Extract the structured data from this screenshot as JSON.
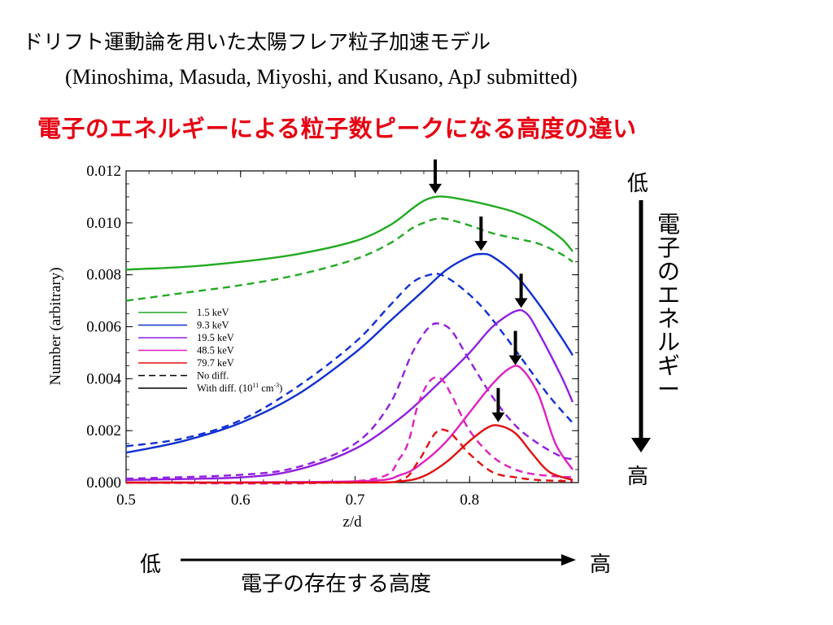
{
  "header": {
    "title": "ドリフト運動論を用いた太陽フレア粒子加速モデル",
    "reference": "(Minoshima, Masuda, Miyoshi, and Kusano, ApJ submitted)",
    "subtitle": "電子のエネルギーによる粒子数ピークになる高度の違い"
  },
  "energy_axis": {
    "low": "低",
    "high": "高",
    "label": "電子のエネルギー"
  },
  "altitude_axis": {
    "low": "低",
    "high": "高",
    "label": "電子の存在する高度"
  },
  "colors": {
    "subtitle": "#e60012",
    "green": "#22aa22",
    "blue": "#1030d0",
    "purple": "#9020e0",
    "magenta": "#e020c0",
    "red": "#e01010"
  },
  "chart_data": {
    "type": "line",
    "xlabel": "z/d",
    "ylabel": "Number (arbitrary)",
    "xlim": [
      0.5,
      0.895
    ],
    "ylim": [
      0.0,
      0.012
    ],
    "x_ticks": [
      "0.5",
      "0.6",
      "0.7",
      "0.8"
    ],
    "x_tick_values": [
      0.5,
      0.6,
      0.7,
      0.8
    ],
    "y_ticks": [
      "0.000",
      "0.002",
      "0.004",
      "0.006",
      "0.008",
      "0.010",
      "0.012"
    ],
    "y_tick_values": [
      0.0,
      0.002,
      0.004,
      0.006,
      0.008,
      0.01,
      0.012
    ],
    "legend": {
      "placement": "middle-left",
      "entries": [
        {
          "label": "1.5 keV",
          "color": "#22aa22",
          "style": "solid"
        },
        {
          "label": "9.3 keV",
          "color": "#1030d0",
          "style": "solid"
        },
        {
          "label": "19.5 keV",
          "color": "#9020e0",
          "style": "solid"
        },
        {
          "label": "48.5 keV",
          "color": "#e020c0",
          "style": "solid"
        },
        {
          "label": "79.7 keV",
          "color": "#e01010",
          "style": "solid"
        },
        {
          "label": "No diff.",
          "color": "#000000",
          "style": "dashed"
        },
        {
          "label": "With diff. (10",
          "sup": "11",
          "label_mid": " cm",
          "sup2": "-3",
          "label_end": ")",
          "color": "#000000",
          "style": "solid"
        }
      ]
    },
    "series": [
      {
        "name": "1.5 keV",
        "color": "#22aa22",
        "style": "solid",
        "x": [
          0.5,
          0.55,
          0.6,
          0.65,
          0.7,
          0.73,
          0.75,
          0.76,
          0.77,
          0.78,
          0.8,
          0.82,
          0.84,
          0.86,
          0.88,
          0.89
        ],
        "y": [
          0.0082,
          0.0083,
          0.0085,
          0.0088,
          0.0093,
          0.0099,
          0.01055,
          0.01085,
          0.011,
          0.011,
          0.01085,
          0.01065,
          0.0104,
          0.01,
          0.0094,
          0.0089
        ]
      },
      {
        "name": "1.5 keV",
        "color": "#22aa22",
        "style": "dashed",
        "x": [
          0.5,
          0.55,
          0.6,
          0.65,
          0.7,
          0.73,
          0.75,
          0.76,
          0.77,
          0.78,
          0.8,
          0.82,
          0.84,
          0.86,
          0.88,
          0.89
        ],
        "y": [
          0.007,
          0.0073,
          0.0076,
          0.008,
          0.0086,
          0.0092,
          0.0098,
          0.01,
          0.01015,
          0.01015,
          0.0099,
          0.0096,
          0.0094,
          0.0092,
          0.0088,
          0.0085
        ]
      },
      {
        "name": "9.3 keV",
        "color": "#1030d0",
        "style": "solid",
        "x": [
          0.5,
          0.55,
          0.6,
          0.65,
          0.7,
          0.73,
          0.76,
          0.78,
          0.8,
          0.81,
          0.82,
          0.84,
          0.86,
          0.88,
          0.89
        ],
        "y": [
          0.00115,
          0.0016,
          0.0023,
          0.0034,
          0.005,
          0.0062,
          0.0074,
          0.0082,
          0.0087,
          0.0088,
          0.0087,
          0.008,
          0.0069,
          0.0056,
          0.0049
        ]
      },
      {
        "name": "9.3 keV",
        "color": "#1030d0",
        "style": "dashed",
        "x": [
          0.5,
          0.55,
          0.6,
          0.65,
          0.7,
          0.73,
          0.75,
          0.765,
          0.775,
          0.79,
          0.81,
          0.83,
          0.85,
          0.87,
          0.89
        ],
        "y": [
          0.0014,
          0.0017,
          0.0024,
          0.0037,
          0.0054,
          0.0068,
          0.0077,
          0.008,
          0.008,
          0.0076,
          0.0068,
          0.0057,
          0.0045,
          0.0033,
          0.0023
        ]
      },
      {
        "name": "19.5 keV",
        "color": "#9020e0",
        "style": "solid",
        "x": [
          0.5,
          0.6,
          0.65,
          0.7,
          0.74,
          0.77,
          0.8,
          0.82,
          0.84,
          0.85,
          0.86,
          0.88,
          0.89
        ],
        "y": [
          0.0001,
          0.0002,
          0.0005,
          0.0013,
          0.0025,
          0.0037,
          0.005,
          0.006,
          0.0066,
          0.0065,
          0.0058,
          0.0041,
          0.0031
        ]
      },
      {
        "name": "19.5 keV",
        "color": "#9020e0",
        "style": "dashed",
        "x": [
          0.5,
          0.6,
          0.65,
          0.7,
          0.73,
          0.75,
          0.765,
          0.775,
          0.785,
          0.8,
          0.82,
          0.84,
          0.86,
          0.88,
          0.89
        ],
        "y": [
          0.00015,
          0.0003,
          0.0006,
          0.0015,
          0.003,
          0.005,
          0.006,
          0.0061,
          0.0058,
          0.0047,
          0.0033,
          0.0022,
          0.0015,
          0.001,
          0.0009
        ]
      },
      {
        "name": "48.5 keV",
        "color": "#e020c0",
        "style": "solid",
        "x": [
          0.5,
          0.7,
          0.74,
          0.76,
          0.78,
          0.8,
          0.82,
          0.835,
          0.845,
          0.86,
          0.875,
          0.89
        ],
        "y": [
          0.0,
          5e-05,
          0.0003,
          0.0008,
          0.0016,
          0.0027,
          0.0038,
          0.0044,
          0.0044,
          0.0034,
          0.0015,
          0.0005
        ]
      },
      {
        "name": "48.5 keV",
        "color": "#e020c0",
        "style": "dashed",
        "x": [
          0.5,
          0.7,
          0.74,
          0.755,
          0.765,
          0.775,
          0.785,
          0.8,
          0.82,
          0.84,
          0.86,
          0.89
        ],
        "y": [
          0.0,
          5e-05,
          0.001,
          0.003,
          0.0039,
          0.004,
          0.0033,
          0.002,
          0.001,
          0.0005,
          0.0003,
          0.0002
        ]
      },
      {
        "name": "79.7 keV",
        "color": "#e01010",
        "style": "solid",
        "x": [
          0.5,
          0.7,
          0.74,
          0.76,
          0.78,
          0.8,
          0.815,
          0.825,
          0.84,
          0.855,
          0.87,
          0.89
        ],
        "y": [
          0.0,
          0.0,
          5e-05,
          0.00025,
          0.0008,
          0.0016,
          0.0021,
          0.0022,
          0.0019,
          0.0011,
          0.0004,
          0.0001
        ]
      },
      {
        "name": "79.7 keV",
        "color": "#e01010",
        "style": "dashed",
        "x": [
          0.5,
          0.7,
          0.74,
          0.755,
          0.77,
          0.78,
          0.79,
          0.8,
          0.82,
          0.84,
          0.86,
          0.89
        ],
        "y": [
          0.0,
          0.0,
          0.0001,
          0.0008,
          0.0019,
          0.002,
          0.0016,
          0.0011,
          0.0004,
          0.0002,
          0.0001,
          5e-05
        ]
      }
    ],
    "peak_markers": [
      {
        "x": 0.77,
        "y": 0.011
      },
      {
        "x": 0.81,
        "y": 0.0088
      },
      {
        "x": 0.845,
        "y": 0.0066
      },
      {
        "x": 0.84,
        "y": 0.0044
      },
      {
        "x": 0.825,
        "y": 0.0022
      }
    ]
  }
}
